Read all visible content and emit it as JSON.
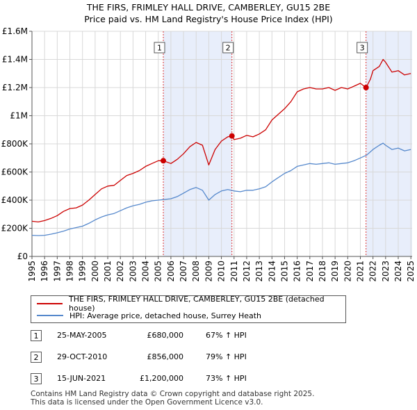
{
  "title": {
    "line1": "THE FIRS, FRIMLEY HALL DRIVE, CAMBERLEY, GU15 2BE",
    "line2": "Price paid vs. HM Land Registry's House Price Index (HPI)"
  },
  "legend": {
    "property_label": "THE FIRS, FRIMLEY HALL DRIVE, CAMBERLEY, GU15 2BE (detached house)",
    "hpi_label": "HPI: Average price, detached house, Surrey Heath"
  },
  "colors": {
    "property": "#cc0000",
    "hpi": "#5588cc",
    "shade": "#e8eefb",
    "marker_line": "#dd3333",
    "axis": "#555555",
    "grid": "#d8d8d8"
  },
  "sales": [
    {
      "num": "1",
      "date": "25-MAY-2005",
      "price": "£680,000",
      "pct": "67% ↑ HPI"
    },
    {
      "num": "2",
      "date": "29-OCT-2010",
      "price": "£856,000",
      "pct": "79% ↑ HPI"
    },
    {
      "num": "3",
      "date": "15-JUN-2021",
      "price": "£1,200,000",
      "pct": "73% ↑ HPI"
    }
  ],
  "footer": {
    "line1": "Contains HM Land Registry data © Crown copyright and database right 2025.",
    "line2": "This data is licensed under the Open Government Licence v3.0."
  },
  "chart_data": {
    "type": "line",
    "title": "THE FIRS, FRIMLEY HALL DRIVE, CAMBERLEY, GU15 2BE — Price paid vs. HM Land Registry's House Price Index (HPI)",
    "xlabel": "",
    "ylabel": "",
    "xlim": [
      1995,
      2025.1
    ],
    "ylim": [
      0,
      1600000
    ],
    "x_ticks": [
      1995,
      1996,
      1997,
      1998,
      1999,
      2000,
      2001,
      2002,
      2003,
      2004,
      2005,
      2006,
      2007,
      2008,
      2009,
      2010,
      2011,
      2012,
      2013,
      2014,
      2015,
      2016,
      2017,
      2018,
      2019,
      2020,
      2021,
      2022,
      2023,
      2024,
      2025
    ],
    "x_tick_labels": [
      "1995",
      "1996",
      "1997",
      "1998",
      "1999",
      "2000",
      "2001",
      "2002",
      "2003",
      "2004",
      "2005",
      "2006",
      "2007",
      "2008",
      "2009",
      "2010",
      "2011",
      "2012",
      "2013",
      "2014",
      "2015",
      "2016",
      "2017",
      "2018",
      "2019",
      "2020",
      "2021",
      "2022",
      "2023",
      "2024",
      "2025"
    ],
    "y_ticks": [
      0,
      200000,
      400000,
      600000,
      800000,
      1000000,
      1200000,
      1400000,
      1600000
    ],
    "y_tick_labels": [
      "£0",
      "£200K",
      "£400K",
      "£600K",
      "£800K",
      "£1M",
      "£1.2M",
      "£1.4M",
      "£1.6M"
    ],
    "grid": true,
    "shaded_ranges": [
      [
        2005.4,
        2010.83
      ],
      [
        2021.45,
        2025.1
      ]
    ],
    "sale_markers": [
      {
        "label": "1",
        "x": 2005.4,
        "y": 680000
      },
      {
        "label": "2",
        "x": 2010.83,
        "y": 856000
      },
      {
        "label": "3",
        "x": 2021.45,
        "y": 1200000
      }
    ],
    "series": [
      {
        "name": "THE FIRS, FRIMLEY HALL DRIVE, CAMBERLEY, GU15 2BE (detached house)",
        "x": [
          1995.0,
          1995.5,
          1996.0,
          1996.5,
          1997.0,
          1997.5,
          1998.0,
          1998.5,
          1999.0,
          1999.5,
          2000.0,
          2000.5,
          2001.0,
          2001.5,
          2002.0,
          2002.5,
          2003.0,
          2003.5,
          2004.0,
          2004.5,
          2005.0,
          2005.4,
          2006.0,
          2006.5,
          2007.0,
          2007.5,
          2008.0,
          2008.5,
          2009.0,
          2009.5,
          2010.0,
          2010.5,
          2010.83,
          2011.0,
          2011.5,
          2012.0,
          2012.5,
          2013.0,
          2013.5,
          2014.0,
          2014.5,
          2015.0,
          2015.5,
          2016.0,
          2016.5,
          2017.0,
          2017.5,
          2018.0,
          2018.5,
          2019.0,
          2019.5,
          2020.0,
          2020.5,
          2021.0,
          2021.45,
          2021.8,
          2022.0,
          2022.5,
          2022.8,
          2023.0,
          2023.5,
          2024.0,
          2024.5,
          2025.0
        ],
        "values": [
          250000,
          245000,
          255000,
          270000,
          290000,
          320000,
          340000,
          345000,
          365000,
          400000,
          440000,
          480000,
          500000,
          505000,
          540000,
          575000,
          590000,
          610000,
          640000,
          660000,
          680000,
          680000,
          660000,
          690000,
          730000,
          780000,
          810000,
          790000,
          650000,
          760000,
          820000,
          850000,
          856000,
          830000,
          840000,
          860000,
          850000,
          870000,
          900000,
          970000,
          1010000,
          1050000,
          1100000,
          1170000,
          1190000,
          1200000,
          1190000,
          1190000,
          1200000,
          1180000,
          1200000,
          1190000,
          1210000,
          1230000,
          1200000,
          1260000,
          1320000,
          1350000,
          1400000,
          1380000,
          1310000,
          1320000,
          1290000,
          1300000
        ]
      },
      {
        "name": "HPI: Average price, detached house, Surrey Heath",
        "x": [
          1995.0,
          1995.5,
          1996.0,
          1996.5,
          1997.0,
          1997.5,
          1998.0,
          1998.5,
          1999.0,
          1999.5,
          2000.0,
          2000.5,
          2001.0,
          2001.5,
          2002.0,
          2002.5,
          2003.0,
          2003.5,
          2004.0,
          2004.5,
          2005.0,
          2005.5,
          2006.0,
          2006.5,
          2007.0,
          2007.5,
          2008.0,
          2008.5,
          2009.0,
          2009.5,
          2010.0,
          2010.5,
          2011.0,
          2011.5,
          2012.0,
          2012.5,
          2013.0,
          2013.5,
          2014.0,
          2014.5,
          2015.0,
          2015.5,
          2016.0,
          2016.5,
          2017.0,
          2017.5,
          2018.0,
          2018.5,
          2019.0,
          2019.5,
          2020.0,
          2020.5,
          2021.0,
          2021.5,
          2022.0,
          2022.5,
          2022.8,
          2023.0,
          2023.5,
          2024.0,
          2024.5,
          2025.0
        ],
        "values": [
          150000,
          148000,
          150000,
          158000,
          168000,
          180000,
          195000,
          205000,
          215000,
          235000,
          260000,
          280000,
          295000,
          305000,
          325000,
          345000,
          360000,
          370000,
          385000,
          395000,
          400000,
          405000,
          410000,
          425000,
          450000,
          475000,
          490000,
          470000,
          400000,
          440000,
          465000,
          475000,
          465000,
          460000,
          470000,
          470000,
          480000,
          495000,
          530000,
          560000,
          590000,
          610000,
          640000,
          650000,
          660000,
          655000,
          660000,
          665000,
          655000,
          660000,
          665000,
          680000,
          700000,
          720000,
          760000,
          790000,
          805000,
          790000,
          760000,
          770000,
          750000,
          760000
        ]
      }
    ]
  }
}
